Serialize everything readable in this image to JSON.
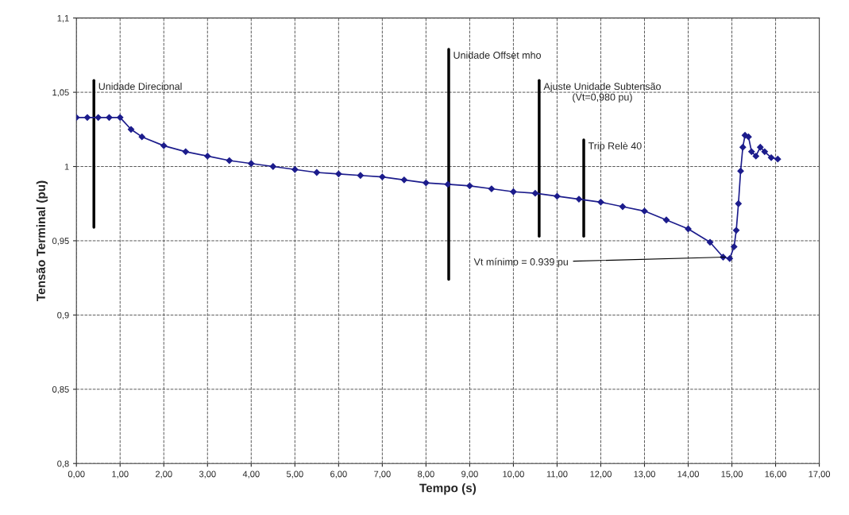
{
  "chart_data": {
    "type": "line",
    "xlabel": "Tempo (s)",
    "ylabel": "Tensão Terminal (pu)",
    "xlim": [
      0,
      17
    ],
    "xticks": [
      {
        "value": 0,
        "label": "0,00"
      },
      {
        "value": 1,
        "label": "1,00"
      },
      {
        "value": 2,
        "label": "2,00"
      },
      {
        "value": 3,
        "label": "3,00"
      },
      {
        "value": 4,
        "label": "4,00"
      },
      {
        "value": 5,
        "label": "5,00"
      },
      {
        "value": 6,
        "label": "6,00"
      },
      {
        "value": 7,
        "label": "7,00"
      },
      {
        "value": 8,
        "label": "8,00"
      },
      {
        "value": 9,
        "label": "9,00"
      },
      {
        "value": 10,
        "label": "10,00"
      },
      {
        "value": 11,
        "label": "11,00"
      },
      {
        "value": 12,
        "label": "12,00"
      },
      {
        "value": 13,
        "label": "13,00"
      },
      {
        "value": 14,
        "label": "14,00"
      },
      {
        "value": 15,
        "label": "15,00"
      },
      {
        "value": 16,
        "label": "16,00"
      },
      {
        "value": 17,
        "label": "17,00"
      }
    ],
    "ylim": [
      0.8,
      1.1
    ],
    "yticks": [
      {
        "value": 0.8,
        "label": "0,8"
      },
      {
        "value": 0.85,
        "label": "0,85"
      },
      {
        "value": 0.9,
        "label": "0,9"
      },
      {
        "value": 0.95,
        "label": "0,95"
      },
      {
        "value": 1.0,
        "label": "1"
      },
      {
        "value": 1.05,
        "label": "1,05"
      },
      {
        "value": 1.1,
        "label": "1,1"
      }
    ],
    "grid": true,
    "legend": false,
    "series": [
      {
        "color": "#1c1c8c",
        "marker": "diamond",
        "x": [
          0,
          0.25,
          0.5,
          0.75,
          1.0,
          1.25,
          1.5,
          2,
          2.5,
          3,
          3.5,
          4,
          4.5,
          5,
          5.5,
          6,
          6.5,
          7,
          7.5,
          8,
          8.5,
          9,
          9.5,
          10,
          10.5,
          11,
          11.5,
          12,
          12.5,
          13,
          13.5,
          14,
          14.5,
          14.8,
          14.95,
          15.05,
          15.1,
          15.15,
          15.2,
          15.25,
          15.3,
          15.38,
          15.45,
          15.55,
          15.65,
          15.75,
          15.9,
          16.05
        ],
        "values": [
          1.033,
          1.033,
          1.033,
          1.033,
          1.033,
          1.025,
          1.02,
          1.014,
          1.01,
          1.007,
          1.004,
          1.002,
          1.0,
          0.998,
          0.996,
          0.995,
          0.994,
          0.993,
          0.991,
          0.989,
          0.988,
          0.987,
          0.985,
          0.983,
          0.982,
          0.98,
          0.978,
          0.976,
          0.973,
          0.97,
          0.964,
          0.958,
          0.949,
          0.939,
          0.938,
          0.946,
          0.957,
          0.975,
          0.997,
          1.013,
          1.021,
          1.02,
          1.01,
          1.007,
          1.013,
          1.01,
          1.006,
          1.005
        ]
      },
      {
        "color": "#000000",
        "x": [
          0.4,
          0.4
        ],
        "values": [
          0.959,
          1.058
        ]
      },
      {
        "color": "#000000",
        "x": [
          8.52,
          8.52
        ],
        "values": [
          0.924,
          1.079
        ]
      },
      {
        "color": "#000000",
        "x": [
          10.59,
          10.59
        ],
        "values": [
          0.953,
          1.058
        ]
      },
      {
        "color": "#000000",
        "x": [
          11.61,
          11.61
        ],
        "values": [
          0.953,
          1.018
        ]
      }
    ],
    "annotations": [
      {
        "text": "Unidade Direcional",
        "x": 0.4,
        "y": 1.058
      },
      {
        "text": "Unidade Offset mho",
        "x": 8.52,
        "y": 1.079
      },
      {
        "text": "Ajuste Unidade Subtensão\n(Vt=0,980 pu)",
        "x": 10.59,
        "y": 1.058
      },
      {
        "text": "Trip Relè 40",
        "x": 11.61,
        "y": 1.018
      },
      {
        "text": "Vt mínimo = 0.939 pu",
        "x": 14.9,
        "y": 0.939
      }
    ]
  }
}
